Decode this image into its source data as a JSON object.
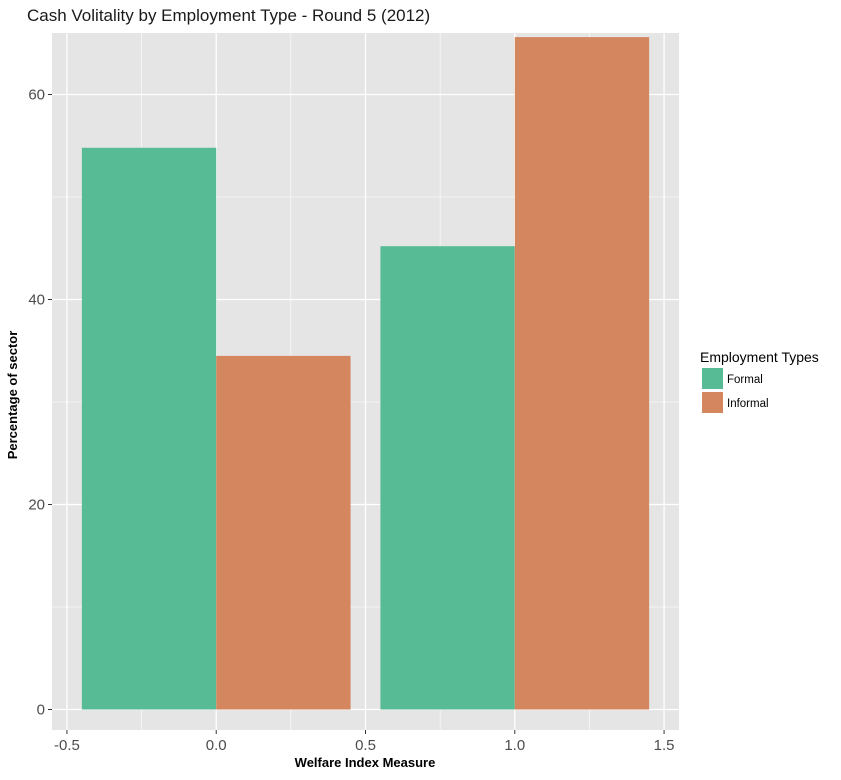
{
  "chart_data": {
    "type": "bar",
    "title": "Cash Volitality by Employment Type - Round 5 (2012)",
    "xlabel": "Welfare Index Measure",
    "ylabel": "Percentage of sector",
    "xlim": [
      -0.55,
      1.55
    ],
    "ylim": [
      -2,
      66
    ],
    "x_ticks": [
      -0.5,
      0.0,
      0.5,
      1.0,
      1.5
    ],
    "x_tick_labels": [
      "-0.5",
      "0.0",
      "0.5",
      "1.0",
      "1.5"
    ],
    "y_ticks": [
      0,
      20,
      40,
      60
    ],
    "y_tick_labels": [
      "0",
      "20",
      "40",
      "60"
    ],
    "x": [
      0,
      1
    ],
    "bar_width": 0.9,
    "series": [
      {
        "name": "Formal",
        "values": [
          54.8,
          45.2
        ],
        "color": "#57BB95"
      },
      {
        "name": "Informal",
        "values": [
          34.5,
          65.6
        ],
        "color": "#D4865F"
      }
    ],
    "legend": {
      "title": "Employment Types",
      "position": "right"
    },
    "grid": true,
    "panel_background": "#E5E5E5",
    "grid_color": "#FFFFFF"
  }
}
